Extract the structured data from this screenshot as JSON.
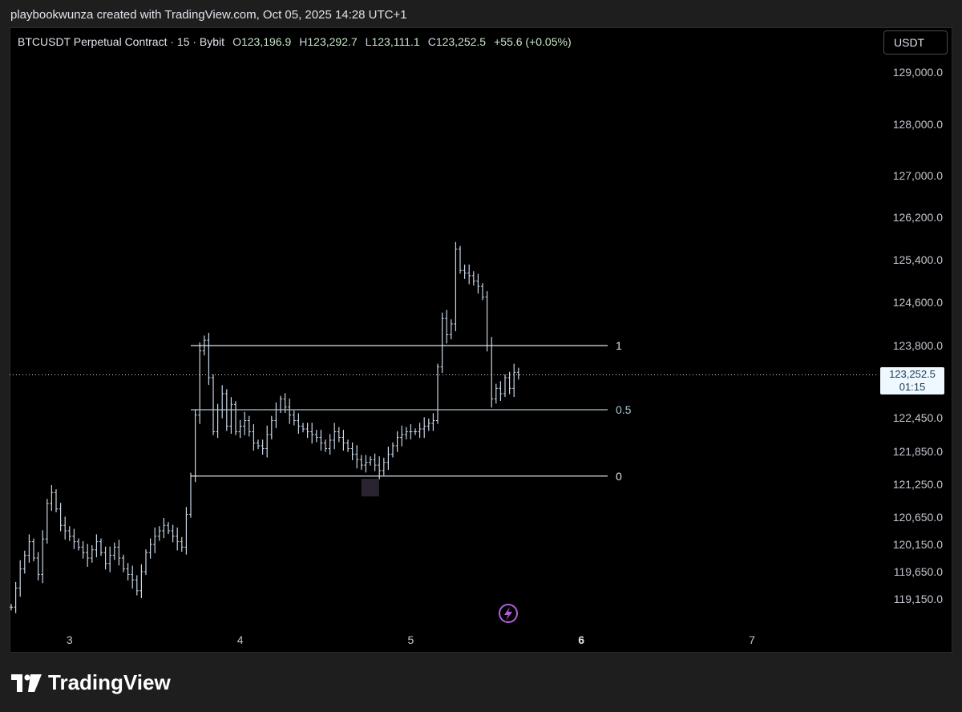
{
  "header": {
    "credit": "playbookwunza created with TradingView.com, Oct 05, 2025 14:28 UTC+1"
  },
  "legend": {
    "symbol": "BTCUSDT Perpetual Contract · 15 · Bybit",
    "o_label": "O",
    "o_value": "123,196.9",
    "h_label": "H",
    "h_value": "123,292.7",
    "l_label": "L",
    "l_value": "123,111.1",
    "c_label": "C",
    "c_value": "123,252.5",
    "change": "+55.6 (+0.05%)"
  },
  "toolbar": {
    "currency": "USDT"
  },
  "last_price": {
    "price": "123,252.5",
    "countdown": "01:15"
  },
  "fib_levels": [
    {
      "label": "1",
      "price": 123800
    },
    {
      "label": "0.5",
      "price": 122600
    },
    {
      "label": "0",
      "price": 121400
    }
  ],
  "footer": {
    "brand": "TradingView"
  },
  "chart_data": {
    "type": "bar",
    "price_ticks": [
      {
        "value": 129000,
        "label": "129,000.0"
      },
      {
        "value": 128000,
        "label": "128,000.0"
      },
      {
        "value": 127000,
        "label": "127,000.0"
      },
      {
        "value": 126200,
        "label": "126,200.0"
      },
      {
        "value": 125400,
        "label": "125,400.0"
      },
      {
        "value": 124600,
        "label": "124,600.0"
      },
      {
        "value": 123800,
        "label": "123,800.0"
      },
      {
        "value": 122450,
        "label": "122,450.0"
      },
      {
        "value": 121850,
        "label": "121,850.0"
      },
      {
        "value": 121250,
        "label": "121,250.0"
      },
      {
        "value": 120650,
        "label": "120,650.0"
      },
      {
        "value": 120150,
        "label": "120,150.0"
      },
      {
        "value": 119650,
        "label": "119,650.0"
      },
      {
        "value": 119150,
        "label": "119,150.0"
      }
    ],
    "time_ticks": [
      {
        "label": "3",
        "bold": false
      },
      {
        "label": "4",
        "bold": false
      },
      {
        "label": "5",
        "bold": false
      },
      {
        "label": "6",
        "bold": true
      },
      {
        "label": "7",
        "bold": false
      }
    ],
    "last_price_value": 123252.5,
    "series_path": [
      [
        0,
        119000
      ],
      [
        2,
        119700
      ],
      [
        4,
        120200
      ],
      [
        6,
        119600
      ],
      [
        8,
        120900
      ],
      [
        9,
        121100
      ],
      [
        11,
        120500
      ],
      [
        13,
        120300
      ],
      [
        15,
        120100
      ],
      [
        17,
        119900
      ],
      [
        19,
        120200
      ],
      [
        21,
        119800
      ],
      [
        23,
        120100
      ],
      [
        25,
        119700
      ],
      [
        27,
        119500
      ],
      [
        28,
        119300
      ],
      [
        30,
        120000
      ],
      [
        32,
        120300
      ],
      [
        34,
        120500
      ],
      [
        36,
        120300
      ],
      [
        38,
        120100
      ],
      [
        39,
        120700
      ],
      [
        40,
        121400
      ],
      [
        41,
        122500
      ],
      [
        42,
        123700
      ],
      [
        43,
        123900
      ],
      [
        44,
        123200
      ],
      [
        45,
        122200
      ],
      [
        46,
        122600
      ],
      [
        47,
        122900
      ],
      [
        48,
        122300
      ],
      [
        49,
        122700
      ],
      [
        50,
        122200
      ],
      [
        52,
        122400
      ],
      [
        54,
        122000
      ],
      [
        56,
        121900
      ],
      [
        58,
        122400
      ],
      [
        60,
        122800
      ],
      [
        62,
        122500
      ],
      [
        64,
        122300
      ],
      [
        66,
        122200
      ],
      [
        68,
        122100
      ],
      [
        70,
        121900
      ],
      [
        72,
        122200
      ],
      [
        74,
        122000
      ],
      [
        76,
        121800
      ],
      [
        78,
        121600
      ],
      [
        80,
        121700
      ],
      [
        82,
        121500
      ],
      [
        84,
        121800
      ],
      [
        86,
        122100
      ],
      [
        88,
        122200
      ],
      [
        90,
        122200
      ],
      [
        92,
        122300
      ],
      [
        94,
        122400
      ],
      [
        95,
        123400
      ],
      [
        96,
        124300
      ],
      [
        97,
        124000
      ],
      [
        98,
        124200
      ],
      [
        99,
        125600
      ],
      [
        100,
        125200
      ],
      [
        102,
        125100
      ],
      [
        104,
        124900
      ],
      [
        105,
        124700
      ],
      [
        106,
        123800
      ],
      [
        107,
        122800
      ],
      [
        108,
        123000
      ],
      [
        109,
        122900
      ],
      [
        110,
        123200
      ],
      [
        111,
        123000
      ],
      [
        112,
        123300
      ],
      [
        113,
        123250
      ]
    ],
    "bar_count": 114,
    "time_tick_indices": [
      13,
      51,
      89,
      127,
      165
    ]
  }
}
